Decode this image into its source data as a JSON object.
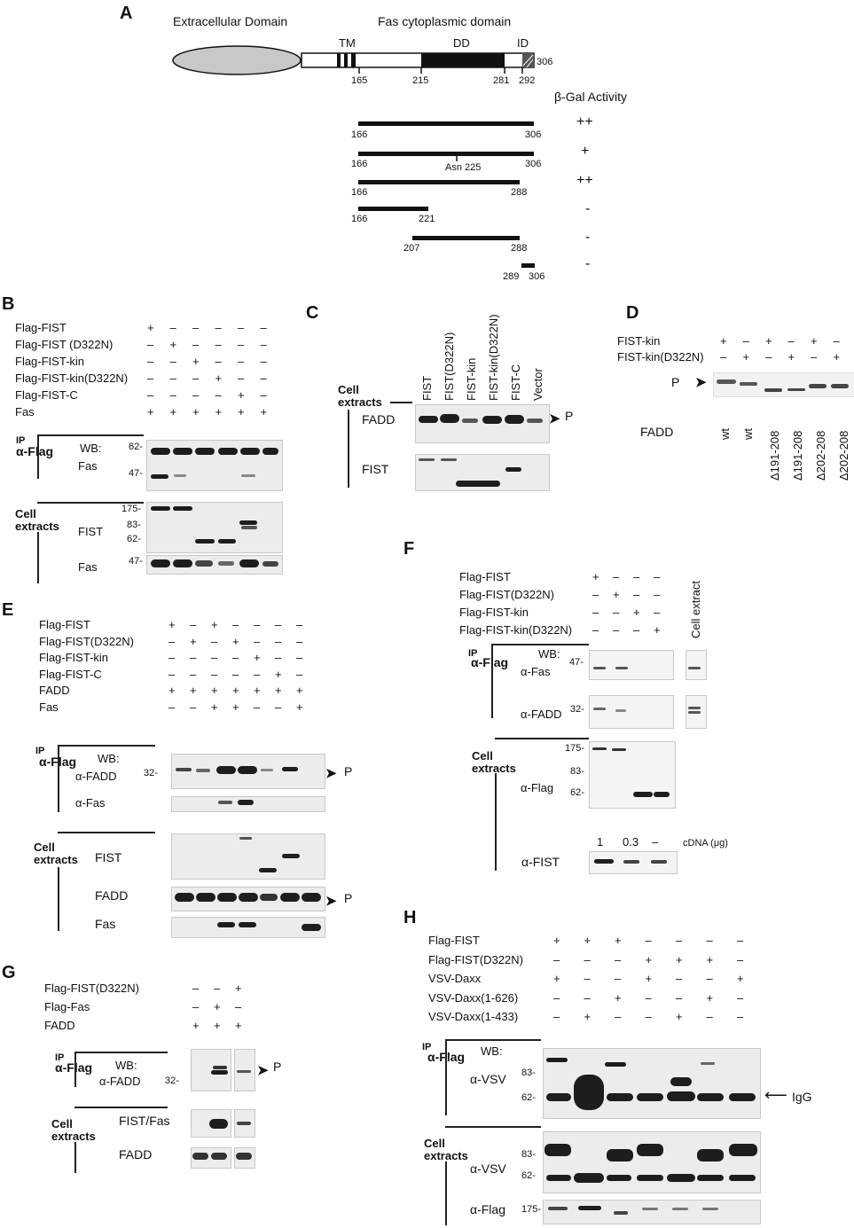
{
  "panel_labels": {
    "A": "A",
    "B": "B",
    "C": "C",
    "D": "D",
    "E": "E",
    "F": "F",
    "G": "G",
    "H": "H"
  },
  "panelA": {
    "extracellular": "Extracellular Domain",
    "cytoplasmic": "Fas cytoplasmic domain",
    "tm": "TM",
    "dd": "DD",
    "id": "ID",
    "end": "306",
    "ticks": [
      "165",
      "215",
      "281",
      "292"
    ],
    "activity_title": "β-Gal Activity",
    "constructs": [
      {
        "start": "166",
        "end": "306",
        "activity": "++"
      },
      {
        "start": "166",
        "end": "306",
        "activity": "+",
        "note": "Asn 225"
      },
      {
        "start": "166",
        "end": "288",
        "activity": "++"
      },
      {
        "start": "166",
        "end": "221",
        "activity": "-"
      },
      {
        "start": "207",
        "end": "288",
        "activity": "-"
      },
      {
        "start": "289",
        "end": "306",
        "activity": "-"
      }
    ]
  },
  "panelB": {
    "rows": [
      "Flag-FIST",
      "Flag-FIST (D322N)",
      "Flag-FIST-kin",
      "Flag-FIST-kin(D322N)",
      "Flag-FIST-C",
      "Fas"
    ],
    "signs": [
      [
        "+",
        "–",
        "–",
        "–",
        "–",
        "–"
      ],
      [
        "–",
        "+",
        "–",
        "–",
        "–",
        "–"
      ],
      [
        "–",
        "–",
        "+",
        "–",
        "–",
        "–"
      ],
      [
        "–",
        "–",
        "–",
        "+",
        "–",
        "–"
      ],
      [
        "–",
        "–",
        "–",
        "–",
        "+",
        "–"
      ],
      [
        "+",
        "+",
        "+",
        "+",
        "+",
        "+"
      ]
    ],
    "ip": "IP",
    "flag": "α-Flag",
    "wb": "WB:",
    "fas": "Fas",
    "cell": "Cell",
    "extracts": "extracts",
    "fist": "FIST",
    "mw_top": [
      "62-",
      "47-"
    ],
    "mw_cell": [
      "175-",
      "83-",
      "62-"
    ],
    "mw_fas": "47-"
  },
  "panelC": {
    "lanes": [
      "FIST",
      "FIST(D322N)",
      "FIST-kin",
      "FIST-kin(D322N)",
      "FIST-C",
      "Vector"
    ],
    "cell": "Cell",
    "extracts": "extracts",
    "fadd": "FADD",
    "fist": "FIST",
    "p": "P"
  },
  "panelD": {
    "rows": [
      "FIST-kin",
      "FIST-kin(D322N)"
    ],
    "signs": [
      [
        "+",
        "–",
        "+",
        "–",
        "+",
        "–"
      ],
      [
        "–",
        "+",
        "–",
        "+",
        "–",
        "+"
      ]
    ],
    "p": "P",
    "fadd": "FADD",
    "lanes": [
      "wt",
      "wt",
      "Δ191-208",
      "Δ191-208",
      "Δ202-208",
      "Δ202-208"
    ]
  },
  "panelE": {
    "rows": [
      "Flag-FIST",
      "Flag-FIST(D322N)",
      "Flag-FIST-kin",
      "Flag-FIST-C",
      "FADD",
      "Fas"
    ],
    "signs": [
      [
        "+",
        "–",
        "+",
        "–",
        "–",
        "–",
        "–"
      ],
      [
        "–",
        "+",
        "–",
        "+",
        "–",
        "–",
        "–"
      ],
      [
        "–",
        "–",
        "–",
        "–",
        "+",
        "–",
        "–"
      ],
      [
        "–",
        "–",
        "–",
        "–",
        "–",
        "+",
        "–"
      ],
      [
        "+",
        "+",
        "+",
        "+",
        "+",
        "+",
        "+"
      ],
      [
        "–",
        "–",
        "+",
        "+",
        "–",
        "–",
        "+"
      ]
    ],
    "ip": "IP",
    "flag": "α-Flag",
    "wb": "WB:",
    "afadd": "α-FADD",
    "afas": "α-Fas",
    "cell": "Cell",
    "extracts": "extracts",
    "fist": "FIST",
    "fadd": "FADD",
    "fas": "Fas",
    "mw": "32-",
    "p": "P"
  },
  "panelF": {
    "rows": [
      "Flag-FIST",
      "Flag-FIST(D322N)",
      "Flag-FIST-kin",
      "Flag-FIST-kin(D322N)"
    ],
    "signs": [
      [
        "+",
        "–",
        "–",
        "–"
      ],
      [
        "–",
        "+",
        "–",
        "–"
      ],
      [
        "–",
        "–",
        "+",
        "–"
      ],
      [
        "–",
        "–",
        "–",
        "+"
      ]
    ],
    "cell_extract": "Cell extract",
    "ip": "IP",
    "flag": "α-Flag",
    "wb": "WB:",
    "afas": "α-Fas",
    "afadd": "α-FADD",
    "cell": "Cell",
    "extracts": "extracts",
    "aflag": "α-Flag",
    "afist": "α-FIST",
    "mw": [
      "47-",
      "32-",
      "175-",
      "83-",
      "62-"
    ],
    "cdna": [
      "1",
      "0.3",
      "–"
    ],
    "cdna_label": "cDNA (μg)"
  },
  "panelG": {
    "rows": [
      "Flag-FIST(D322N)",
      "Flag-Fas",
      "FADD"
    ],
    "signs": [
      [
        "–",
        "–",
        "+"
      ],
      [
        "–",
        "+",
        "–"
      ],
      [
        "+",
        "+",
        "+"
      ]
    ],
    "ip": "IP",
    "flag": "α-Flag",
    "wb": "WB:",
    "afadd": "α-FADD",
    "mw": "32-",
    "p": "P",
    "cell": "Cell",
    "extracts": "extracts",
    "fistfas": "FIST/Fas",
    "fadd": "FADD"
  },
  "panelH": {
    "rows": [
      "Flag-FIST",
      "Flag-FIST(D322N)",
      "VSV-Daxx",
      "VSV-Daxx(1-626)",
      "VSV-Daxx(1-433)"
    ],
    "signs": [
      [
        "+",
        "+",
        "+",
        "–",
        "–",
        "–",
        "–"
      ],
      [
        "–",
        "–",
        "–",
        "+",
        "+",
        "+",
        "–"
      ],
      [
        "+",
        "–",
        "–",
        "+",
        "–",
        "–",
        "+"
      ],
      [
        "–",
        "–",
        "+",
        "–",
        "–",
        "+",
        "–"
      ],
      [
        "–",
        "+",
        "–",
        "–",
        "+",
        "–",
        "–"
      ]
    ],
    "ip": "IP",
    "flag": "α-Flag",
    "wb": "WB:",
    "avsv": "α-VSV",
    "igg": "IgG",
    "cell": "Cell",
    "extracts": "extracts",
    "aflag": "α-Flag",
    "mw_ip": [
      "83-",
      "62-"
    ],
    "mw_cell": [
      "83-",
      "62-"
    ],
    "mw_flag": "175-"
  }
}
